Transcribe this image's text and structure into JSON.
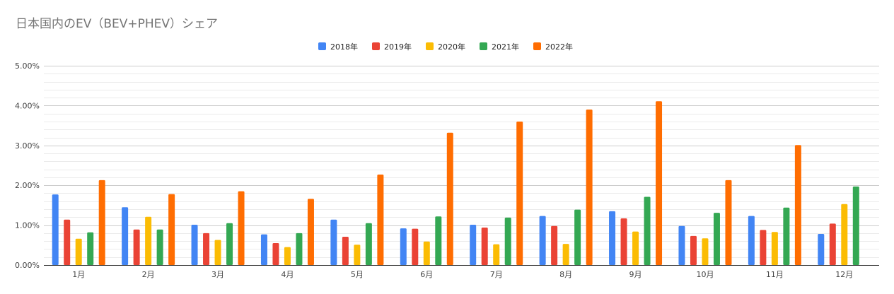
{
  "chart_data": {
    "type": "bar",
    "title": "日本国内のEV（BEV+PHEV）シェア",
    "xlabel": "",
    "ylabel": "",
    "ylim": [
      0,
      0.05
    ],
    "yticks": [
      "0.00%",
      "1.00%",
      "2.00%",
      "3.00%",
      "4.00%",
      "5.00%"
    ],
    "categories": [
      "1月",
      "2月",
      "3月",
      "4月",
      "5月",
      "6月",
      "7月",
      "8月",
      "9月",
      "10月",
      "11月",
      "12月"
    ],
    "legend_position": "top-center",
    "grid": true,
    "series": [
      {
        "name": "2018年",
        "color": "#4285f4",
        "values": [
          0.0177,
          0.0145,
          0.0101,
          0.0077,
          0.0114,
          0.0092,
          0.0101,
          0.0123,
          0.0135,
          0.0098,
          0.0123,
          0.0078
        ]
      },
      {
        "name": "2019年",
        "color": "#ea4335",
        "values": [
          0.0114,
          0.0089,
          0.008,
          0.0055,
          0.0071,
          0.0091,
          0.0094,
          0.0098,
          0.0117,
          0.0073,
          0.0088,
          0.0104
        ]
      },
      {
        "name": "2020年",
        "color": "#fbbc04",
        "values": [
          0.0066,
          0.0121,
          0.0063,
          0.0045,
          0.0051,
          0.0059,
          0.0052,
          0.0053,
          0.0084,
          0.0067,
          0.0083,
          0.0153
        ]
      },
      {
        "name": "2021年",
        "color": "#34a853",
        "values": [
          0.0082,
          0.0089,
          0.0105,
          0.008,
          0.0105,
          0.0122,
          0.0119,
          0.0139,
          0.0171,
          0.0131,
          0.0144,
          0.0197
        ]
      },
      {
        "name": "2022年",
        "color": "#ff6d01",
        "values": [
          0.0213,
          0.0178,
          0.0185,
          0.0166,
          0.0227,
          0.0332,
          0.036,
          0.039,
          0.0411,
          0.0213,
          0.0301,
          null
        ]
      }
    ]
  }
}
